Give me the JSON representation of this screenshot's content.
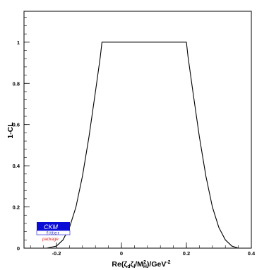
{
  "chart_data": {
    "type": "line",
    "title": "",
    "xlabel": "Re(ζdζl/M²H)/GeV⁻²",
    "xlabel_parts": {
      "prefix": "Re(",
      "zeta1": "ζ",
      "sub1": "d",
      "zeta2": "ζ",
      "sub2": "l",
      "mid": "/M",
      "sup": "2",
      "sub3": "H",
      "suffix": ")/GeV",
      "exp": "-2"
    },
    "ylabel": "1-CL",
    "xlim": [
      -0.3,
      0.4
    ],
    "ylim": [
      0,
      1.15
    ],
    "xticks": [
      -0.2,
      0,
      0.2,
      0.4
    ],
    "xtick_labels": [
      "-0.2",
      "0",
      "0.2",
      "0.4"
    ],
    "yticks": [
      0,
      0.2,
      0.4,
      0.6,
      0.8,
      1
    ],
    "ytick_labels": [
      "0",
      "0.2",
      "0.4",
      "0.6",
      "0.8",
      "1"
    ],
    "grid": false,
    "series": [
      {
        "color": "#000000",
        "x": [
          -0.23,
          -0.2,
          -0.18,
          -0.16,
          -0.14,
          -0.12,
          -0.1,
          -0.08,
          -0.065,
          -0.06,
          0.0,
          0.1,
          0.2,
          0.205,
          0.22,
          0.24,
          0.26,
          0.28,
          0.3,
          0.32,
          0.34,
          0.36
        ],
        "y": [
          0.0,
          0.01,
          0.04,
          0.1,
          0.2,
          0.35,
          0.54,
          0.76,
          0.93,
          1.0,
          1.0,
          1.0,
          1.0,
          0.93,
          0.76,
          0.54,
          0.35,
          0.2,
          0.1,
          0.04,
          0.01,
          0.0
        ]
      }
    ]
  },
  "logo": {
    "main": "CKM",
    "fitter": "fitter",
    "package": "package",
    "bg_color": "#0b0bd6"
  }
}
